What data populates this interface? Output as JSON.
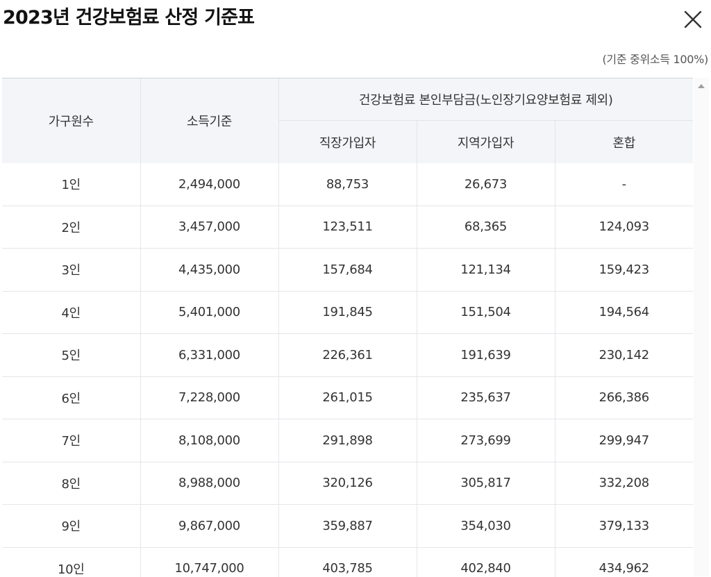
{
  "dialog": {
    "title": "2023년 건강보험료 산정 기준표",
    "basis_note": "(기준 중위소득 100%)",
    "close_icon": "close-icon"
  },
  "table": {
    "headers": {
      "household": "가구원수",
      "income": "소득기준",
      "group": "건강보험료 본인부담금(노인장기요양보험료 제외)",
      "employee": "직장가입자",
      "regional": "지역가입자",
      "mixed": "혼합"
    },
    "rows": [
      {
        "household": "1인",
        "income": "2,494,000",
        "employee": "88,753",
        "regional": "26,673",
        "mixed": "-"
      },
      {
        "household": "2인",
        "income": "3,457,000",
        "employee": "123,511",
        "regional": "68,365",
        "mixed": "124,093"
      },
      {
        "household": "3인",
        "income": "4,435,000",
        "employee": "157,684",
        "regional": "121,134",
        "mixed": "159,423"
      },
      {
        "household": "4인",
        "income": "5,401,000",
        "employee": "191,845",
        "regional": "151,504",
        "mixed": "194,564"
      },
      {
        "household": "5인",
        "income": "6,331,000",
        "employee": "226,361",
        "regional": "191,639",
        "mixed": "230,142"
      },
      {
        "household": "6인",
        "income": "7,228,000",
        "employee": "261,015",
        "regional": "235,637",
        "mixed": "266,386"
      },
      {
        "household": "7인",
        "income": "8,108,000",
        "employee": "291,898",
        "regional": "273,699",
        "mixed": "299,947"
      },
      {
        "household": "8인",
        "income": "8,988,000",
        "employee": "320,126",
        "regional": "305,817",
        "mixed": "332,208"
      },
      {
        "household": "9인",
        "income": "9,867,000",
        "employee": "359,887",
        "regional": "354,030",
        "mixed": "379,133"
      },
      {
        "household": "10인",
        "income": "10,747,000",
        "employee": "403,785",
        "regional": "402,840",
        "mixed": "434,962"
      }
    ]
  }
}
